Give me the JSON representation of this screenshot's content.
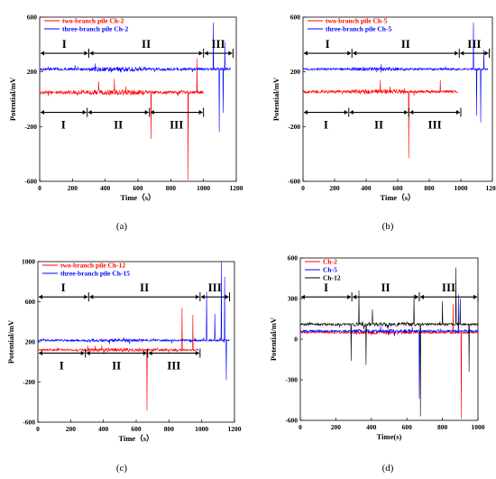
{
  "figure": {
    "panels": [
      {
        "caption": "(a)",
        "legend": [
          "two-branch pile Ch-2",
          "three-branch pile Ch-2"
        ],
        "legend_colors": [
          "#ff0000",
          "#0000ff"
        ],
        "ylabel": "Potential/mV",
        "xlabel": "Time（s）",
        "x_ticks": [
          "0",
          "200",
          "400",
          "600",
          "800",
          "1000",
          "1200"
        ],
        "y_ticks": [
          "600",
          "200",
          "-200",
          "-600"
        ],
        "top_regions": [
          "I",
          "II",
          "III"
        ],
        "bottom_regions": [
          "I",
          "II",
          "III"
        ]
      },
      {
        "caption": "(b)",
        "legend": [
          "two-branch pile Ch-5",
          "three-branch pile Ch-5"
        ],
        "legend_colors": [
          "#ff0000",
          "#0000ff"
        ],
        "ylabel": "Potential/mV",
        "xlabel": "Time（s）",
        "x_ticks": [
          "0",
          "200",
          "400",
          "600",
          "800",
          "1000",
          "1200"
        ],
        "y_ticks": [
          "600",
          "200",
          "-200",
          "-600"
        ],
        "top_regions": [
          "I",
          "II",
          "III"
        ],
        "bottom_regions": [
          "I",
          "II",
          "III"
        ]
      },
      {
        "caption": "(c)",
        "legend": [
          "two-branch pile Ch-12",
          "three-branch pile Ch-15"
        ],
        "legend_colors": [
          "#ff0000",
          "#0000ff"
        ],
        "ylabel": "Potential/mV",
        "xlabel": "Time（s）",
        "x_ticks": [
          "0",
          "200",
          "400",
          "600",
          "800",
          "1000",
          "1200"
        ],
        "y_ticks": [
          "1000",
          "600",
          "200",
          "-200",
          "-600"
        ],
        "top_regions": [
          "I",
          "II",
          "III"
        ],
        "bottom_regions": [
          "I",
          "II",
          "III"
        ]
      },
      {
        "caption": "(d)",
        "legend": [
          "Ch-2",
          "Ch-5",
          "Ch-12"
        ],
        "legend_colors": [
          "#ff0000",
          "#0000ff",
          "#000000"
        ],
        "ylabel": "Potential/mV",
        "xlabel": "Time(s)",
        "x_ticks": [
          "0",
          "200",
          "400",
          "600",
          "800",
          "1000"
        ],
        "y_ticks": [
          "600",
          "300",
          "0",
          "-300",
          "-600"
        ],
        "top_regions": [
          "I",
          "II",
          "III"
        ],
        "bottom_regions": []
      }
    ]
  },
  "chart_data": [
    {
      "type": "line",
      "xlim": [
        0,
        1200
      ],
      "ylim": [
        -600,
        600
      ],
      "series": [
        {
          "name": "two-branch pile Ch-2",
          "color": "#ff0000",
          "baseline": 50,
          "noise": 12,
          "x_end": 1000,
          "spikes": [
            [
              360,
              130
            ],
            [
              455,
              150
            ],
            [
              680,
              -290
            ],
            [
              905,
              -590
            ],
            [
              960,
              300
            ]
          ]
        },
        {
          "name": "three-branch pile Ch-2",
          "color": "#0000ff",
          "baseline": 220,
          "noise": 10,
          "x_end": 1165,
          "spikes": [
            [
              1060,
              560
            ],
            [
              1095,
              -240
            ],
            [
              1120,
              -100
            ],
            [
              1130,
              420
            ]
          ]
        }
      ],
      "regions_top": [
        [
          0,
          300
        ],
        [
          300,
          1000
        ],
        [
          1000,
          1180
        ]
      ],
      "regions_bottom": [
        [
          0,
          290
        ],
        [
          290,
          670
        ],
        [
          670,
          1000
        ]
      ]
    },
    {
      "type": "line",
      "xlim": [
        0,
        1200
      ],
      "ylim": [
        -600,
        600
      ],
      "series": [
        {
          "name": "two-branch pile Ch-5",
          "color": "#ff0000",
          "baseline": 55,
          "noise": 10,
          "x_end": 980,
          "spikes": [
            [
              490,
              140
            ],
            [
              670,
              -430
            ],
            [
              870,
              140
            ]
          ]
        },
        {
          "name": "three-branch pile Ch-5",
          "color": "#0000ff",
          "baseline": 220,
          "noise": 8,
          "x_end": 1170,
          "spikes": [
            [
              1080,
              560
            ],
            [
              1100,
              -120
            ],
            [
              1125,
              -170
            ],
            [
              1145,
              360
            ]
          ]
        }
      ],
      "regions_top": [
        [
          0,
          310
        ],
        [
          310,
          990
        ],
        [
          990,
          1180
        ]
      ],
      "regions_bottom": [
        [
          0,
          290
        ],
        [
          290,
          670
        ],
        [
          670,
          1000
        ]
      ]
    },
    {
      "type": "line",
      "xlim": [
        0,
        1200
      ],
      "ylim": [
        -600,
        1000
      ],
      "series": [
        {
          "name": "two-branch pile Ch-12",
          "color": "#ff0000",
          "baseline": 120,
          "noise": 10,
          "x_end": 980,
          "spikes": [
            [
              350,
              160
            ],
            [
              665,
              -490
            ],
            [
              880,
              540
            ],
            [
              945,
              470
            ],
            [
              990,
              -220
            ]
          ]
        },
        {
          "name": "three-branch pile Ch-15",
          "color": "#0000ff",
          "baseline": 215,
          "noise": 10,
          "x_end": 1170,
          "spikes": [
            [
              1030,
              700
            ],
            [
              1080,
              480
            ],
            [
              1120,
              1000
            ],
            [
              1150,
              -180
            ],
            [
              1140,
              850
            ]
          ]
        }
      ],
      "regions_top": [
        [
          0,
          310
        ],
        [
          310,
          990
        ],
        [
          990,
          1170
        ]
      ],
      "regions_bottom": [
        [
          0,
          290
        ],
        [
          290,
          670
        ],
        [
          670,
          990
        ]
      ]
    },
    {
      "type": "line",
      "xlim": [
        0,
        1000
      ],
      "ylim": [
        -600,
        600
      ],
      "series": [
        {
          "name": "Ch-2",
          "color": "#ff0000",
          "baseline": 50,
          "noise": 8,
          "x_end": 1000,
          "spikes": [
            [
              905,
              -590
            ],
            [
              860,
              260
            ]
          ]
        },
        {
          "name": "Ch-5",
          "color": "#0000ff",
          "baseline": 60,
          "noise": 8,
          "x_end": 1000,
          "spikes": [
            [
              670,
              -440
            ],
            [
              890,
              330
            ]
          ]
        },
        {
          "name": "Ch-12",
          "color": "#000000",
          "baseline": 110,
          "noise": 9,
          "x_end": 1000,
          "spikes": [
            [
              285,
              -160
            ],
            [
              330,
              360
            ],
            [
              370,
              -190
            ],
            [
              405,
              220
            ],
            [
              640,
              330
            ],
            [
              675,
              -570
            ],
            [
              800,
              280
            ],
            [
              875,
              530
            ],
            [
              900,
              300
            ],
            [
              950,
              -240
            ]
          ]
        }
      ],
      "regions_top": [
        [
          0,
          290
        ],
        [
          290,
          670
        ],
        [
          670,
          1000
        ]
      ],
      "regions_bottom": []
    }
  ]
}
